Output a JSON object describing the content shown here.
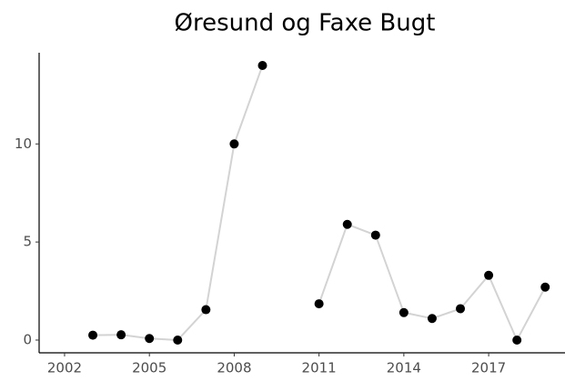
{
  "chart_data": {
    "type": "line",
    "title": "Øresund og Faxe Bugt",
    "x": [
      2003,
      2004,
      2005,
      2006,
      2007,
      2008,
      2009,
      2010,
      2011,
      2012,
      2013,
      2014,
      2015,
      2016,
      2017,
      2018,
      2019
    ],
    "series": [
      {
        "name": "Øresund og Faxe Bugt",
        "color": "#d3d3d3",
        "values": [
          0.25,
          0.27,
          0.08,
          0.0,
          1.55,
          10.0,
          14.0,
          null,
          1.85,
          5.9,
          5.35,
          1.4,
          1.1,
          1.6,
          3.3,
          0.0,
          2.7
        ]
      }
    ],
    "point_color": "#000000",
    "xlim": [
      2001.1,
      2019.7
    ],
    "xticks": [
      2002,
      2005,
      2008,
      2011,
      2014,
      2017
    ],
    "ylim": [
      -0.65,
      14.65
    ],
    "yticks": [
      0,
      5,
      10
    ],
    "grid": false
  }
}
